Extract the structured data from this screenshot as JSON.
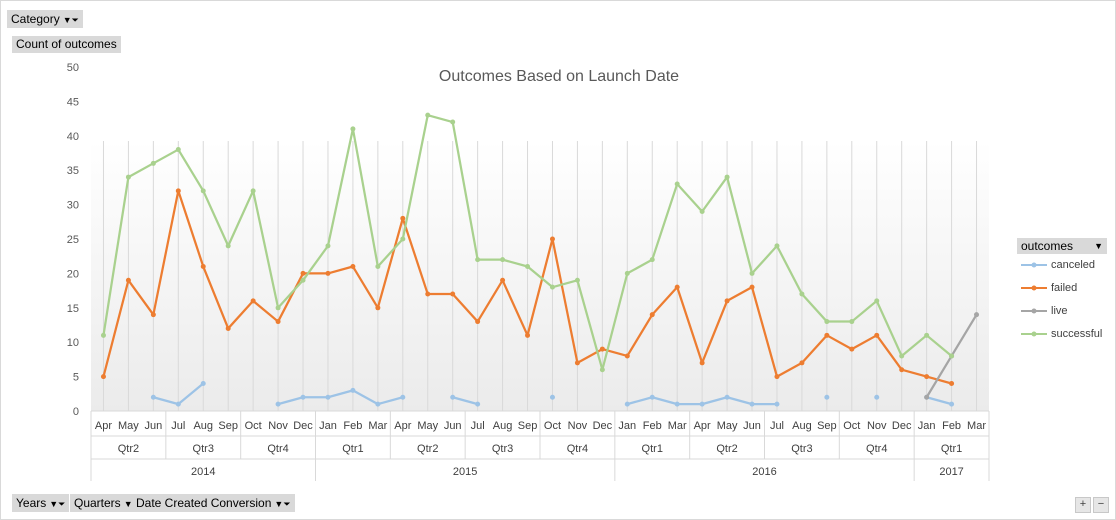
{
  "filters": {
    "category": "Category",
    "count_label": "Count of outcomes",
    "years": "Years",
    "quarters": "Quarters",
    "date_created": "Date Created Conversion"
  },
  "legend": {
    "title": "outcomes"
  },
  "chart_data": {
    "type": "line",
    "title": "Outcomes Based on Launch Date",
    "xlabel": "",
    "ylabel": "",
    "ylim": [
      0,
      50
    ],
    "y_ticks": [
      0,
      5,
      10,
      15,
      20,
      25,
      30,
      35,
      40,
      45,
      50
    ],
    "grid": "vertical",
    "legend_position": "right",
    "categories": [
      "Apr",
      "May",
      "Jun",
      "Jul",
      "Aug",
      "Sep",
      "Oct",
      "Nov",
      "Dec",
      "Jan",
      "Feb",
      "Mar",
      "Apr",
      "May",
      "Jun",
      "Jul",
      "Aug",
      "Sep",
      "Oct",
      "Nov",
      "Dec",
      "Jan",
      "Feb",
      "Mar",
      "Apr",
      "May",
      "Jun",
      "Jul",
      "Aug",
      "Sep",
      "Oct",
      "Nov",
      "Dec",
      "Jan",
      "Feb",
      "Mar"
    ],
    "quarters": [
      {
        "label": "Qtr2",
        "span": 3
      },
      {
        "label": "Qtr3",
        "span": 3
      },
      {
        "label": "Qtr4",
        "span": 3
      },
      {
        "label": "Qtr1",
        "span": 3
      },
      {
        "label": "Qtr2",
        "span": 3
      },
      {
        "label": "Qtr3",
        "span": 3
      },
      {
        "label": "Qtr4",
        "span": 3
      },
      {
        "label": "Qtr1",
        "span": 3
      },
      {
        "label": "Qtr2",
        "span": 3
      },
      {
        "label": "Qtr3",
        "span": 3
      },
      {
        "label": "Qtr4",
        "span": 3
      },
      {
        "label": "Qtr1",
        "span": 3
      }
    ],
    "years": [
      {
        "label": "2014",
        "span": 9
      },
      {
        "label": "2015",
        "span": 12
      },
      {
        "label": "2016",
        "span": 12
      },
      {
        "label": "2017",
        "span": 3
      }
    ],
    "series": [
      {
        "name": "canceled",
        "color": "#9dc3e6",
        "values": [
          null,
          null,
          2,
          1,
          4,
          null,
          null,
          1,
          2,
          2,
          3,
          1,
          2,
          null,
          2,
          1,
          null,
          null,
          2,
          null,
          null,
          1,
          2,
          1,
          1,
          2,
          1,
          1,
          null,
          2,
          null,
          2,
          null,
          2,
          1,
          null
        ]
      },
      {
        "name": "failed",
        "color": "#ed7d31",
        "values": [
          5,
          19,
          14,
          32,
          21,
          12,
          16,
          13,
          20,
          20,
          21,
          15,
          28,
          17,
          17,
          13,
          19,
          11,
          25,
          7,
          9,
          8,
          14,
          18,
          7,
          16,
          18,
          5,
          7,
          11,
          9,
          11,
          6,
          5,
          4,
          null
        ]
      },
      {
        "name": "live",
        "color": "#a5a5a5",
        "values": [
          null,
          null,
          null,
          null,
          null,
          null,
          null,
          null,
          null,
          null,
          null,
          null,
          null,
          null,
          null,
          null,
          null,
          null,
          null,
          null,
          null,
          null,
          null,
          null,
          null,
          null,
          null,
          null,
          null,
          null,
          null,
          null,
          null,
          2,
          8,
          14
        ]
      },
      {
        "name": "successful",
        "color": "#a9d18e",
        "values": [
          11,
          34,
          36,
          38,
          32,
          24,
          32,
          15,
          19,
          24,
          41,
          21,
          25,
          43,
          42,
          22,
          22,
          21,
          18,
          19,
          6,
          20,
          22,
          33,
          29,
          34,
          20,
          24,
          17,
          13,
          13,
          16,
          8,
          11,
          8,
          null
        ]
      }
    ]
  }
}
